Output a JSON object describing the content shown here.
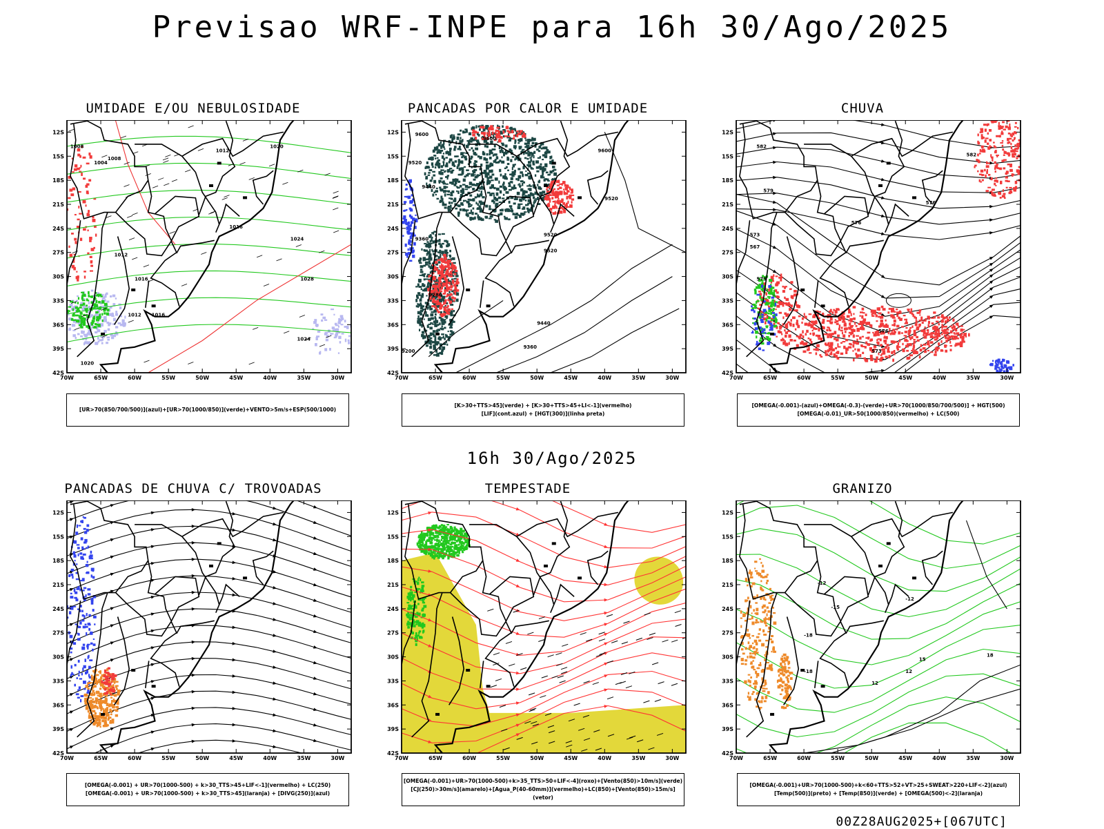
{
  "header": {
    "title": "Previsao WRF-INPE  para 16h 30/Ago/2025"
  },
  "middle": {
    "title": "16h 30/Ago/2025"
  },
  "footer": {
    "run_label": "00Z28AUG2025+[067UTC]"
  },
  "axes": {
    "lat_labels": [
      "12S",
      "15S",
      "18S",
      "21S",
      "24S",
      "27S",
      "30S",
      "33S",
      "36S",
      "39S",
      "42S"
    ],
    "lon_labels": [
      "70W",
      "65W",
      "60W",
      "55W",
      "50W",
      "45W",
      "40W",
      "35W",
      "30W"
    ]
  },
  "panels": [
    {
      "title": "UMIDADE E/OU NEBULOSIDADE",
      "legend": [
        "[UR>70(850/700/500)](azul)+[UR>70(1000/850)](verde)+VENTO>5m/s+ESP(500/1000)"
      ],
      "contour_labels": [
        "1008",
        "1004",
        "1008",
        "1012",
        "1016",
        "1020",
        "1012",
        "1016",
        "1024",
        "1028",
        "1012",
        "1016",
        "1020",
        "1024"
      ]
    },
    {
      "title": "PANCADAS POR CALOR E UMIDADE",
      "legend": [
        "[K>30+TTS>45](verde) + [K>30+TTS>45+LI<-1](vermelho)",
        "[LIF](cont.azul) + [HGT(300)](linha preta)"
      ],
      "contour_labels": [
        "9600",
        "9600",
        "9600",
        "9520",
        "9520",
        "9440",
        "9520",
        "9520",
        "9360",
        "9440",
        "9280",
        "9360",
        "9200"
      ]
    },
    {
      "title": "CHUVA",
      "legend": [
        "[OMEGA(-0.001)-(azul)+OMEGA(-0.3)-(verde)+UR>70(1000/850/700/500)] + HGT(500)",
        "[OMEGA(-0.01)_UR>50(1000/850)(vermelho) + LC(500)"
      ],
      "contour_labels": [
        "582",
        "582",
        "579",
        "576",
        "576",
        "573",
        "567",
        "573",
        "576",
        "579"
      ]
    },
    {
      "title": "PANCADAS DE CHUVA C/ TROVOADAS",
      "legend": [
        "[OMEGA(-0.001) + UR>70(1000-500) + k>30_TTS>45+LIF<-1](vermelho) + LC(250)",
        "[OMEGA(-0.001) + UR>70(1000-500) + k>30_TTS>45](laranja) + [DIVG(250)](azul)"
      ],
      "contour_labels": []
    },
    {
      "title": "TEMPESTADE",
      "legend": [
        "[OMEGA(-0.001)+UR>70(1000-500)+k>35_TTS>50+LIF<-4](roxo)+[Vento(850)>10m/s](verde)",
        "[CJ(250)>30m/s](amarelo)+[Agua_P(40-60mm)](vermelho)+LC(850)+[Vento(850)>15m/s](vetor)"
      ],
      "contour_labels": []
    },
    {
      "title": "GRANIZO",
      "legend": [
        "[OMEGA(-0.001)+UR>70(1000-500)+k<60+TTS>52+VT>25+SWEAT>220+LIF<-2](azul)",
        "[Temp(500)](preto) + [Temp(850)](verde) + [OMEGA(500)<-2](laranja)"
      ],
      "contour_labels": [
        "-12",
        "-12",
        "-15",
        "-18",
        "-18",
        "15",
        "12",
        "12",
        "18"
      ]
    }
  ],
  "colors": {
    "red": "#f23b3b",
    "green": "#22c81e",
    "blue": "#3344ee",
    "darkgreen": "#1d4744",
    "yellow": "#e3d83a",
    "orange": "#ee8a2a",
    "lavender": "#b8b8f0"
  }
}
